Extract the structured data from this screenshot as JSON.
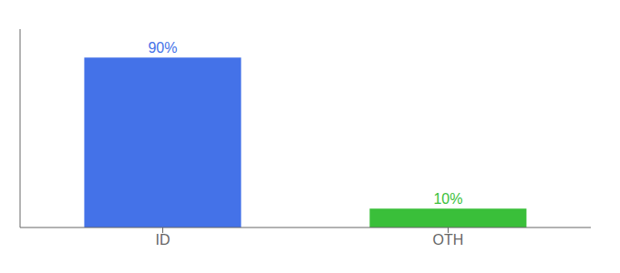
{
  "chart_data": {
    "type": "bar",
    "categories": [
      "ID",
      "OTH"
    ],
    "values": [
      90,
      10
    ],
    "value_labels": [
      "90%",
      "10%"
    ],
    "colors": [
      "#4472e8",
      "#3abf3a"
    ],
    "ylim": [
      0,
      105
    ],
    "data_labels": true,
    "tick_labels": "x"
  }
}
